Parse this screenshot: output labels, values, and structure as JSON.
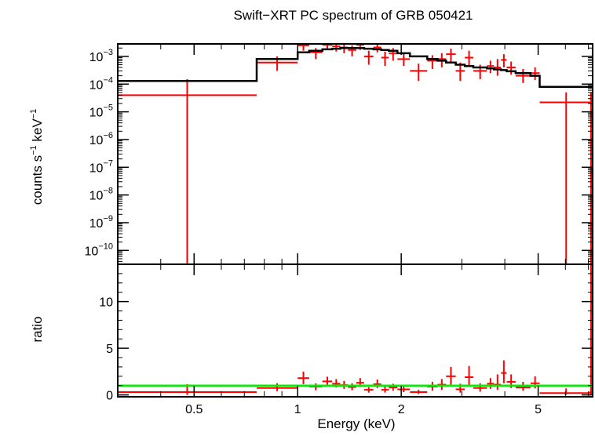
{
  "chart_data": {
    "type": "scatter",
    "title": "Swift−XRT PC spectrum of GRB 050421",
    "xlabel": "Energy (keV)",
    "xscale": "log",
    "xlim": [
      0.3,
      7.2
    ],
    "x_ticks": [
      {
        "value": 0.5,
        "label": "0.5"
      },
      {
        "value": 1,
        "label": "1"
      },
      {
        "value": 2,
        "label": "2"
      },
      {
        "value": 5,
        "label": "5"
      }
    ],
    "colors": {
      "data": "#ff0000",
      "model": "#000000",
      "unity": "#00ee00",
      "axes": "#000000"
    },
    "top_panel": {
      "ylabel_main": "counts s",
      "ylabel_sup1": "−1",
      "ylabel_mid": " keV",
      "ylabel_sup2": "−1",
      "yscale": "log",
      "ylim_exp": [
        -10.5,
        -2.55
      ],
      "y_ticks": [
        {
          "exp": -3,
          "base": "10",
          "sup": "−3"
        },
        {
          "exp": -4,
          "base": "10",
          "sup": "−4"
        },
        {
          "exp": -5,
          "base": "10",
          "sup": "−5"
        },
        {
          "exp": -6,
          "base": "10",
          "sup": "−6"
        },
        {
          "exp": -7,
          "base": "10",
          "sup": "−7"
        },
        {
          "exp": -8,
          "base": "10",
          "sup": "−8"
        },
        {
          "exp": -9,
          "base": "10",
          "sup": "−9"
        },
        {
          "exp": -10,
          "base": "10",
          "sup": "−10"
        }
      ],
      "data_points": [
        {
          "x0": 0.3,
          "x1": 0.76,
          "y": 4e-05,
          "ylo": 1e-11,
          "yhi": 0.00015
        },
        {
          "x0": 0.76,
          "x1": 1.0,
          "y": 0.0006,
          "ylo": 0.0003,
          "yhi": 0.001
        },
        {
          "x0": 1.0,
          "x1": 1.08,
          "y": 0.0025,
          "ylo": 0.0016,
          "yhi": 0.0035
        },
        {
          "x0": 1.08,
          "x1": 1.18,
          "y": 0.0014,
          "ylo": 0.0008,
          "yhi": 0.002
        },
        {
          "x0": 1.18,
          "x1": 1.26,
          "y": 0.0026,
          "ylo": 0.0017,
          "yhi": 0.0035
        },
        {
          "x0": 1.26,
          "x1": 1.33,
          "y": 0.0023,
          "ylo": 0.0015,
          "yhi": 0.0032
        },
        {
          "x0": 1.33,
          "x1": 1.4,
          "y": 0.0021,
          "ylo": 0.0013,
          "yhi": 0.003
        },
        {
          "x0": 1.4,
          "x1": 1.48,
          "y": 0.0017,
          "ylo": 0.001,
          "yhi": 0.0025
        },
        {
          "x0": 1.48,
          "x1": 1.56,
          "y": 0.0026,
          "ylo": 0.0017,
          "yhi": 0.0036
        },
        {
          "x0": 1.56,
          "x1": 1.66,
          "y": 0.001,
          "ylo": 0.0005,
          "yhi": 0.0016
        },
        {
          "x0": 1.66,
          "x1": 1.75,
          "y": 0.0021,
          "ylo": 0.0014,
          "yhi": 0.003
        },
        {
          "x0": 1.75,
          "x1": 1.84,
          "y": 0.0009,
          "ylo": 0.00045,
          "yhi": 0.0015
        },
        {
          "x0": 1.84,
          "x1": 1.95,
          "y": 0.0013,
          "ylo": 0.0007,
          "yhi": 0.002
        },
        {
          "x0": 1.95,
          "x1": 2.12,
          "y": 0.0008,
          "ylo": 0.00045,
          "yhi": 0.0013
        },
        {
          "x0": 2.12,
          "x1": 2.38,
          "y": 0.0003,
          "ylo": 0.00013,
          "yhi": 0.00055
        },
        {
          "x0": 2.38,
          "x1": 2.55,
          "y": 0.0007,
          "ylo": 0.00035,
          "yhi": 0.0011
        },
        {
          "x0": 2.55,
          "x1": 2.7,
          "y": 0.0008,
          "ylo": 0.0004,
          "yhi": 0.0013
        },
        {
          "x0": 2.7,
          "x1": 2.88,
          "y": 0.0012,
          "ylo": 0.0006,
          "yhi": 0.0019
        },
        {
          "x0": 2.88,
          "x1": 3.06,
          "y": 0.0003,
          "ylo": 0.00013,
          "yhi": 0.0006
        },
        {
          "x0": 3.06,
          "x1": 3.24,
          "y": 0.0009,
          "ylo": 0.00045,
          "yhi": 0.0016
        },
        {
          "x0": 3.24,
          "x1": 3.55,
          "y": 0.0003,
          "ylo": 0.00015,
          "yhi": 0.0005
        },
        {
          "x0": 3.55,
          "x1": 3.72,
          "y": 0.00045,
          "ylo": 0.00025,
          "yhi": 0.0007
        },
        {
          "x0": 3.72,
          "x1": 3.9,
          "y": 0.0004,
          "ylo": 0.0002,
          "yhi": 0.0008
        },
        {
          "x0": 3.9,
          "x1": 4.05,
          "y": 0.00075,
          "ylo": 0.0004,
          "yhi": 0.0012
        },
        {
          "x0": 4.05,
          "x1": 4.3,
          "y": 0.0004,
          "ylo": 0.00022,
          "yhi": 0.00065
        },
        {
          "x0": 4.3,
          "x1": 4.75,
          "y": 0.0002,
          "ylo": 0.00011,
          "yhi": 0.00035
        },
        {
          "x0": 4.75,
          "x1": 5.05,
          "y": 0.00025,
          "ylo": 0.00014,
          "yhi": 0.0004
        },
        {
          "x0": 5.05,
          "x1": 7.2,
          "y": 2.2e-05,
          "ylo": 1e-11,
          "yhi": 5e-05
        },
        {
          "x0": 7.05,
          "x1": 7.2,
          "y": 3e-05,
          "ylo": 1e-11,
          "yhi": 5e-05
        }
      ],
      "model_steps": [
        {
          "x0": 0.3,
          "x1": 0.76,
          "y": 0.00013
        },
        {
          "x0": 0.76,
          "x1": 1.0,
          "y": 0.0008
        },
        {
          "x0": 1.0,
          "x1": 1.08,
          "y": 0.0014
        },
        {
          "x0": 1.08,
          "x1": 1.18,
          "y": 0.0016
        },
        {
          "x0": 1.18,
          "x1": 1.26,
          "y": 0.0018
        },
        {
          "x0": 1.26,
          "x1": 1.33,
          "y": 0.0019
        },
        {
          "x0": 1.33,
          "x1": 1.4,
          "y": 0.002
        },
        {
          "x0": 1.4,
          "x1": 1.48,
          "y": 0.002
        },
        {
          "x0": 1.48,
          "x1": 1.56,
          "y": 0.002
        },
        {
          "x0": 1.56,
          "x1": 1.66,
          "y": 0.0019
        },
        {
          "x0": 1.66,
          "x1": 1.75,
          "y": 0.0018
        },
        {
          "x0": 1.75,
          "x1": 1.84,
          "y": 0.0017
        },
        {
          "x0": 1.84,
          "x1": 1.95,
          "y": 0.0016
        },
        {
          "x0": 1.95,
          "x1": 2.12,
          "y": 0.0013
        },
        {
          "x0": 2.12,
          "x1": 2.38,
          "y": 0.001
        },
        {
          "x0": 2.38,
          "x1": 2.55,
          "y": 0.0008
        },
        {
          "x0": 2.55,
          "x1": 2.7,
          "y": 0.0007
        },
        {
          "x0": 2.7,
          "x1": 2.88,
          "y": 0.0006
        },
        {
          "x0": 2.88,
          "x1": 3.06,
          "y": 0.0005
        },
        {
          "x0": 3.06,
          "x1": 3.24,
          "y": 0.00045
        },
        {
          "x0": 3.24,
          "x1": 3.55,
          "y": 0.0004
        },
        {
          "x0": 3.55,
          "x1": 3.72,
          "y": 0.00037
        },
        {
          "x0": 3.72,
          "x1": 3.9,
          "y": 0.00034
        },
        {
          "x0": 3.9,
          "x1": 4.05,
          "y": 0.00032
        },
        {
          "x0": 4.05,
          "x1": 4.3,
          "y": 0.00029
        },
        {
          "x0": 4.3,
          "x1": 4.75,
          "y": 0.00025
        },
        {
          "x0": 4.75,
          "x1": 5.05,
          "y": 0.0002
        },
        {
          "x0": 5.05,
          "x1": 7.2,
          "y": 8e-05
        }
      ]
    },
    "bottom_panel": {
      "ylabel": "ratio",
      "ylim": [
        -0.2,
        14.0
      ],
      "y_ticks": [
        {
          "value": 0,
          "label": "0"
        },
        {
          "value": 5,
          "label": "5"
        },
        {
          "value": 10,
          "label": "10"
        }
      ],
      "unity_line": 1.0,
      "data_points": [
        {
          "x0": 0.3,
          "x1": 0.76,
          "y": 0.3,
          "ylo": 0.0,
          "yhi": 1.15
        },
        {
          "x0": 0.76,
          "x1": 1.0,
          "y": 0.75,
          "ylo": 0.4,
          "yhi": 1.25
        },
        {
          "x0": 1.0,
          "x1": 1.08,
          "y": 1.8,
          "ylo": 1.15,
          "yhi": 2.5
        },
        {
          "x0": 1.08,
          "x1": 1.18,
          "y": 0.9,
          "ylo": 0.5,
          "yhi": 1.25
        },
        {
          "x0": 1.18,
          "x1": 1.26,
          "y": 1.45,
          "ylo": 0.95,
          "yhi": 1.95
        },
        {
          "x0": 1.26,
          "x1": 1.33,
          "y": 1.2,
          "ylo": 0.8,
          "yhi": 1.7
        },
        {
          "x0": 1.33,
          "x1": 1.4,
          "y": 1.05,
          "ylo": 0.65,
          "yhi": 1.5
        },
        {
          "x0": 1.4,
          "x1": 1.48,
          "y": 0.85,
          "ylo": 0.5,
          "yhi": 1.25
        },
        {
          "x0": 1.48,
          "x1": 1.56,
          "y": 1.3,
          "ylo": 0.85,
          "yhi": 1.8
        },
        {
          "x0": 1.56,
          "x1": 1.66,
          "y": 0.55,
          "ylo": 0.25,
          "yhi": 0.85
        },
        {
          "x0": 1.66,
          "x1": 1.75,
          "y": 1.15,
          "ylo": 0.75,
          "yhi": 1.65
        },
        {
          "x0": 1.75,
          "x1": 1.84,
          "y": 0.55,
          "ylo": 0.25,
          "yhi": 0.9
        },
        {
          "x0": 1.84,
          "x1": 1.95,
          "y": 0.8,
          "ylo": 0.45,
          "yhi": 1.2
        },
        {
          "x0": 1.95,
          "x1": 2.12,
          "y": 0.6,
          "ylo": 0.3,
          "yhi": 1.0
        },
        {
          "x0": 2.12,
          "x1": 2.38,
          "y": 0.3,
          "ylo": 0.1,
          "yhi": 0.55
        },
        {
          "x0": 2.38,
          "x1": 2.55,
          "y": 0.9,
          "ylo": 0.45,
          "yhi": 1.4
        },
        {
          "x0": 2.55,
          "x1": 2.7,
          "y": 1.1,
          "ylo": 0.55,
          "yhi": 1.7
        },
        {
          "x0": 2.7,
          "x1": 2.88,
          "y": 2.0,
          "ylo": 1.1,
          "yhi": 3.0
        },
        {
          "x0": 2.88,
          "x1": 3.06,
          "y": 0.6,
          "ylo": 0.25,
          "yhi": 1.2
        },
        {
          "x0": 3.06,
          "x1": 3.24,
          "y": 1.9,
          "ylo": 0.95,
          "yhi": 3.1
        },
        {
          "x0": 3.24,
          "x1": 3.55,
          "y": 0.75,
          "ylo": 0.35,
          "yhi": 1.25
        },
        {
          "x0": 3.55,
          "x1": 3.72,
          "y": 1.2,
          "ylo": 0.65,
          "yhi": 1.8
        },
        {
          "x0": 3.72,
          "x1": 3.9,
          "y": 1.1,
          "ylo": 0.55,
          "yhi": 2.2
        },
        {
          "x0": 3.9,
          "x1": 4.05,
          "y": 2.35,
          "ylo": 1.25,
          "yhi": 3.7
        },
        {
          "x0": 4.05,
          "x1": 4.3,
          "y": 1.4,
          "ylo": 0.75,
          "yhi": 2.2
        },
        {
          "x0": 4.3,
          "x1": 4.75,
          "y": 0.8,
          "ylo": 0.45,
          "yhi": 1.4
        },
        {
          "x0": 4.75,
          "x1": 5.05,
          "y": 1.25,
          "ylo": 0.7,
          "yhi": 2.0
        },
        {
          "x0": 5.05,
          "x1": 7.2,
          "y": 0.2,
          "ylo": 0.0,
          "yhi": 0.7
        },
        {
          "x0": 7.05,
          "x1": 7.2,
          "y": 0.3,
          "ylo": 0.0,
          "yhi": 14.0
        }
      ]
    }
  }
}
